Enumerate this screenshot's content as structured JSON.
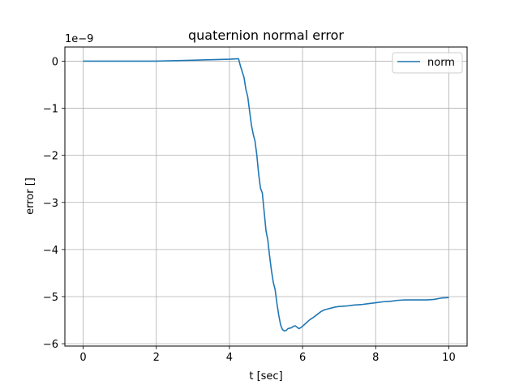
{
  "chart_data": {
    "type": "line",
    "title": "quaternion normal error",
    "xlabel": "t [sec]",
    "ylabel": "error []",
    "y_offset_text": "1e−9",
    "xlim": [
      -0.5,
      10.5
    ],
    "ylim": [
      -6.05,
      0.3
    ],
    "x_ticks": [
      0,
      2,
      4,
      6,
      8,
      10
    ],
    "x_tick_labels": [
      "0",
      "2",
      "4",
      "6",
      "8",
      "10"
    ],
    "y_ticks": [
      0,
      -1,
      -2,
      -3,
      -4,
      -5,
      -6
    ],
    "y_tick_labels": [
      "0",
      "−1",
      "−2",
      "−3",
      "−4",
      "−5",
      "−6"
    ],
    "grid": true,
    "legend_position": "top-right",
    "colors": {
      "series": "#1f77b4",
      "grid": "#b0b0b0"
    },
    "series": [
      {
        "name": "norm",
        "x": [
          0,
          1,
          2,
          3,
          3.5,
          4.0,
          4.2,
          4.25,
          4.3,
          4.4,
          4.45,
          4.5,
          4.55,
          4.6,
          4.65,
          4.7,
          4.75,
          4.8,
          4.85,
          4.9,
          4.95,
          5.0,
          5.05,
          5.1,
          5.15,
          5.2,
          5.25,
          5.3,
          5.35,
          5.4,
          5.45,
          5.5,
          5.55,
          5.6,
          5.65,
          5.7,
          5.75,
          5.8,
          5.85,
          5.9,
          5.95,
          6.0,
          6.1,
          6.2,
          6.3,
          6.4,
          6.5,
          6.6,
          6.7,
          6.8,
          6.9,
          7.0,
          7.2,
          7.4,
          7.6,
          7.8,
          8.0,
          8.2,
          8.4,
          8.6,
          8.8,
          9.0,
          9.2,
          9.4,
          9.6,
          9.8,
          10.0
        ],
        "y": [
          0,
          0,
          0,
          0.02,
          0.03,
          0.04,
          0.05,
          0.05,
          -0.1,
          -0.35,
          -0.6,
          -0.75,
          -1.05,
          -1.35,
          -1.55,
          -1.7,
          -2.0,
          -2.4,
          -2.7,
          -2.8,
          -3.2,
          -3.6,
          -3.8,
          -4.15,
          -4.45,
          -4.7,
          -4.85,
          -5.15,
          -5.4,
          -5.6,
          -5.7,
          -5.73,
          -5.72,
          -5.68,
          -5.67,
          -5.66,
          -5.63,
          -5.62,
          -5.65,
          -5.68,
          -5.66,
          -5.63,
          -5.56,
          -5.49,
          -5.44,
          -5.38,
          -5.32,
          -5.28,
          -5.26,
          -5.24,
          -5.22,
          -5.21,
          -5.2,
          -5.18,
          -5.17,
          -5.15,
          -5.13,
          -5.11,
          -5.1,
          -5.08,
          -5.07,
          -5.07,
          -5.07,
          -5.07,
          -5.06,
          -5.03,
          -5.02
        ]
      }
    ]
  }
}
